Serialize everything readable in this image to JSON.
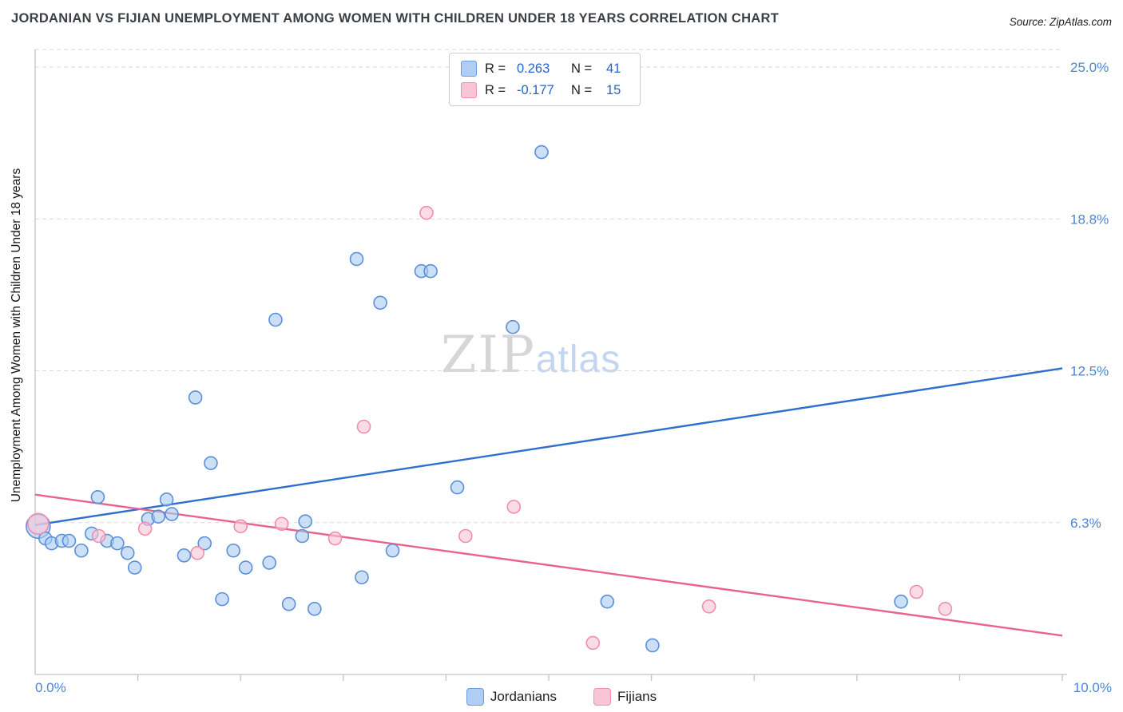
{
  "title": "JORDANIAN VS FIJIAN UNEMPLOYMENT AMONG WOMEN WITH CHILDREN UNDER 18 YEARS CORRELATION CHART",
  "source": "Source: ZipAtlas.com",
  "watermark": {
    "zip": "ZIP",
    "atlas": "atlas"
  },
  "y_axis_title": "Unemployment Among Women with Children Under 18 years",
  "stats": {
    "rows": [
      {
        "series": "Jordanians",
        "r_label": "R =",
        "r_value": "0.263",
        "n_label": "N =",
        "n_value": "41"
      },
      {
        "series": "Fijians",
        "r_label": "R =",
        "r_value": "-0.177",
        "n_label": "N =",
        "n_value": "15"
      }
    ]
  },
  "axes": {
    "x_min_label": "0.0%",
    "x_max_label": "10.0%",
    "y_ticks": [
      {
        "label": "25.0%",
        "value": 25.0
      },
      {
        "label": "18.8%",
        "value": 18.75
      },
      {
        "label": "12.5%",
        "value": 12.5
      },
      {
        "label": "6.3%",
        "value": 6.25
      }
    ]
  },
  "bottom_legend": [
    {
      "label": "Jordanians"
    },
    {
      "label": "Fijians"
    }
  ],
  "colors": {
    "accent_blue": "#4a86d8",
    "stat_value_blue": "#2563cf",
    "jordanian_fill": "#a9cbf2",
    "jordanian_edge": "#5b8fd6",
    "jordanian_line": "#2e6fce",
    "fijian_fill": "#f9c4d5",
    "fijian_edge": "#f08cb0",
    "fijian_line": "#e8638f",
    "gridline": "#dadada"
  },
  "chart_data": {
    "type": "scatter",
    "title": "Jordanian vs Fijian Unemployment Among Women with Children Under 18 Years",
    "xlabel": "",
    "ylabel": "Unemployment Among Women with Children Under 18 years",
    "xlim": [
      0,
      10
    ],
    "ylim": [
      0,
      25.7
    ],
    "x_unit": "%",
    "y_unit": "%",
    "grid": "horizontal-dashed",
    "legend_position": "bottom-center",
    "gridlines_y": [
      6.25,
      12.5,
      18.75,
      25.0
    ],
    "series": [
      {
        "name": "Jordanians",
        "R": 0.263,
        "N": 41,
        "fill_color": "#a9cbf2",
        "edge_color": "#5b8fd6",
        "line_color": "#2e6fce",
        "trend": {
          "x1": 0,
          "y1": 6.15,
          "x2": 10,
          "y2": 12.6
        },
        "points": [
          [
            0.03,
            6.1,
            15
          ],
          [
            0.1,
            5.6
          ],
          [
            0.16,
            5.4
          ],
          [
            0.26,
            5.5
          ],
          [
            0.33,
            5.5
          ],
          [
            0.45,
            5.1
          ],
          [
            0.55,
            5.8
          ],
          [
            0.61,
            7.3
          ],
          [
            0.7,
            5.5
          ],
          [
            0.8,
            5.4
          ],
          [
            0.9,
            5.0
          ],
          [
            0.97,
            4.4
          ],
          [
            1.1,
            6.4
          ],
          [
            1.2,
            6.5
          ],
          [
            1.28,
            7.2
          ],
          [
            1.33,
            6.6
          ],
          [
            1.45,
            4.9
          ],
          [
            1.56,
            11.4
          ],
          [
            1.65,
            5.4
          ],
          [
            1.71,
            8.7
          ],
          [
            1.82,
            3.1
          ],
          [
            1.93,
            5.1
          ],
          [
            2.05,
            4.4
          ],
          [
            2.28,
            4.6
          ],
          [
            2.34,
            14.6
          ],
          [
            2.47,
            2.9
          ],
          [
            2.6,
            5.7
          ],
          [
            2.63,
            6.3
          ],
          [
            2.72,
            2.7
          ],
          [
            3.13,
            17.1
          ],
          [
            3.18,
            4.0
          ],
          [
            3.36,
            15.3
          ],
          [
            3.48,
            5.1
          ],
          [
            3.76,
            16.6
          ],
          [
            3.85,
            16.6
          ],
          [
            4.11,
            7.7
          ],
          [
            4.65,
            14.3
          ],
          [
            4.93,
            21.5
          ],
          [
            5.57,
            3.0
          ],
          [
            6.01,
            1.2
          ],
          [
            8.43,
            3.0
          ]
        ]
      },
      {
        "name": "Fijians",
        "R": -0.177,
        "N": 15,
        "fill_color": "#f9c4d5",
        "edge_color": "#f08cb0",
        "line_color": "#e8638f",
        "trend": {
          "x1": 0,
          "y1": 7.4,
          "x2": 10,
          "y2": 1.6
        },
        "points": [
          [
            0.03,
            6.2,
            13
          ],
          [
            0.62,
            5.7
          ],
          [
            1.07,
            6.0
          ],
          [
            1.58,
            5.0
          ],
          [
            2.0,
            6.1
          ],
          [
            2.4,
            6.2
          ],
          [
            2.92,
            5.6
          ],
          [
            3.2,
            10.2
          ],
          [
            3.81,
            19.0
          ],
          [
            4.19,
            5.7
          ],
          [
            4.66,
            6.9
          ],
          [
            5.43,
            1.3
          ],
          [
            6.56,
            2.8
          ],
          [
            8.58,
            3.4
          ],
          [
            8.86,
            2.7
          ]
        ]
      }
    ]
  }
}
